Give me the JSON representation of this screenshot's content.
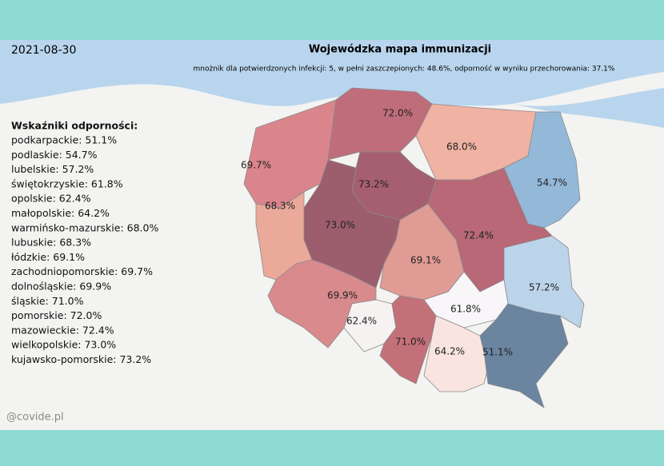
{
  "date": "2021-08-30",
  "title": "Wojewódzka mapa immunizacji",
  "subtitle": "mnożnik dla potwierdzonych infekcji: 5, w pełni zaszczepionych: 48.6%, odporność w wyniku przechorowania: 37.1%",
  "legend": {
    "title": "Wskaźniki odporności:",
    "items": [
      "podkarpackie: 51.1%",
      "podlaskie: 54.7%",
      "lubelskie: 57.2%",
      "świętokrzyskie: 61.8%",
      "opolskie: 62.4%",
      "małopolskie: 64.2%",
      "warmińsko-mazurskie: 68.0%",
      "lubuskie: 68.3%",
      "łódzkie: 69.1%",
      "zachodniopomorskie: 69.7%",
      "dolnośląskie: 69.9%",
      "śląskie: 71.0%",
      "pomorskie: 72.0%",
      "mazowieckie: 72.4%",
      "wielkopolskie: 73.0%",
      "kujawsko-pomorskie: 73.2%"
    ]
  },
  "regions": [
    {
      "value": 69.7,
      "value_label": "69.7%",
      "color": "#d9858b"
    },
    {
      "value": 72.0,
      "value_label": "72.0%",
      "color": "#c06d7b"
    },
    {
      "value": 68.0,
      "value_label": "68.0%",
      "color": "#f0b2a2"
    },
    {
      "value": 54.7,
      "value_label": "54.7%",
      "color": "#94b8d8"
    },
    {
      "value": 73.2,
      "value_label": "73.2%",
      "color": "#a65f70"
    },
    {
      "value": 73.0,
      "value_label": "73.0%",
      "color": "#9c5d6d"
    },
    {
      "value": 68.3,
      "value_label": "68.3%",
      "color": "#eaa999"
    },
    {
      "value": 72.4,
      "value_label": "72.4%",
      "color": "#b86877"
    },
    {
      "value": 69.1,
      "value_label": "69.1%",
      "color": "#e09b95"
    },
    {
      "value": 57.2,
      "value_label": "57.2%",
      "color": "#bcd4ea"
    },
    {
      "value": 69.9,
      "value_label": "69.9%",
      "color": "#d88a8d"
    },
    {
      "value": 62.4,
      "value_label": "62.4%",
      "color": "#f6f2f2"
    },
    {
      "value": 71.0,
      "value_label": "71.0%",
      "color": "#c47079"
    },
    {
      "value": 61.8,
      "value_label": "61.8%",
      "color": "#f8f6f8"
    },
    {
      "value": 64.2,
      "value_label": "64.2%",
      "color": "#fae4e0"
    },
    {
      "value": 51.1,
      "value_label": "51.1%",
      "color": "#6b84a0"
    }
  ],
  "watermark": "@covide.pl"
}
